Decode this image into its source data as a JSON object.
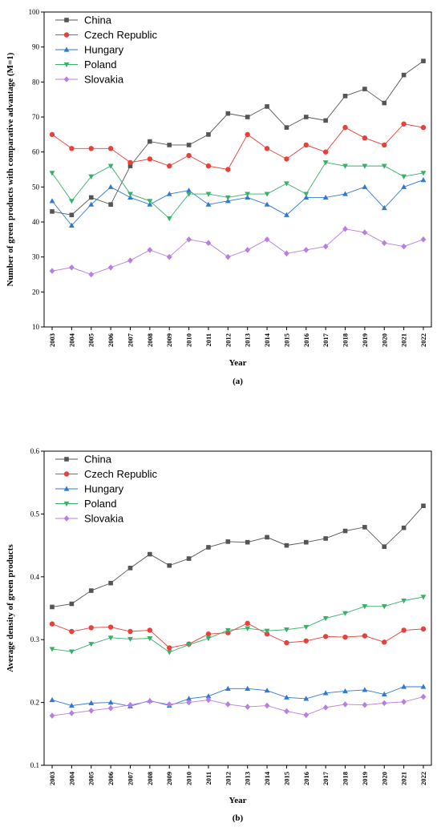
{
  "chart_data": [
    {
      "type": "line",
      "panel_label": "(a)",
      "xlabel": "Year",
      "ylabel": "Number of green products with comparative advantage (M=1)",
      "ylim": [
        10,
        100
      ],
      "yticks": [
        "10",
        "20",
        "30",
        "40",
        "50",
        "60",
        "70",
        "80",
        "90",
        "100"
      ],
      "x": [
        "2003",
        "2004",
        "2005",
        "2006",
        "2007",
        "2008",
        "2009",
        "2010",
        "2011",
        "2012",
        "2013",
        "2014",
        "2015",
        "2016",
        "2017",
        "2018",
        "2019",
        "2020",
        "2021",
        "2022"
      ],
      "legend_position": "top-left",
      "grid": false,
      "series": [
        {
          "name": "China",
          "color": "#555555",
          "marker": "square",
          "values": [
            43,
            42,
            47,
            45,
            56,
            63,
            62,
            62,
            65,
            71,
            70,
            73,
            67,
            70,
            69,
            76,
            78,
            74,
            82,
            86
          ]
        },
        {
          "name": "Czech Republic",
          "color": "#e8403a",
          "marker": "circle",
          "values": [
            65,
            61,
            61,
            61,
            57,
            58,
            56,
            59,
            56,
            55,
            65,
            61,
            58,
            62,
            60,
            67,
            64,
            62,
            68,
            67
          ]
        },
        {
          "name": "Hungary",
          "color": "#2f78d6",
          "marker": "triangle-up",
          "values": [
            46,
            39,
            45,
            50,
            47,
            45,
            48,
            49,
            45,
            46,
            47,
            45,
            42,
            47,
            47,
            48,
            50,
            44,
            50,
            52
          ]
        },
        {
          "name": "Poland",
          "color": "#38b06a",
          "marker": "triangle-down",
          "values": [
            54,
            46,
            53,
            56,
            48,
            46,
            41,
            48,
            48,
            47,
            48,
            48,
            51,
            48,
            57,
            56,
            56,
            56,
            53,
            54
          ]
        },
        {
          "name": "Slovakia",
          "color": "#b87fe0",
          "marker": "diamond",
          "values": [
            26,
            27,
            25,
            27,
            29,
            32,
            30,
            35,
            34,
            30,
            32,
            35,
            31,
            32,
            33,
            38,
            37,
            34,
            33,
            35
          ]
        }
      ]
    },
    {
      "type": "line",
      "panel_label": "(b)",
      "xlabel": "Year",
      "ylabel": "Average density of green products",
      "ylim": [
        0.1,
        0.6
      ],
      "yticks": [
        "0.1",
        "0.2",
        "0.3",
        "0.4",
        "0.5",
        "0.6"
      ],
      "x": [
        "2003",
        "2004",
        "2005",
        "2006",
        "2007",
        "2008",
        "2009",
        "2010",
        "2011",
        "2012",
        "2013",
        "2014",
        "2015",
        "2016",
        "2017",
        "2018",
        "2019",
        "2020",
        "2021",
        "2022"
      ],
      "legend_position": "top-left",
      "grid": false,
      "series": [
        {
          "name": "China",
          "color": "#555555",
          "marker": "square",
          "values": [
            0.352,
            0.357,
            0.378,
            0.39,
            0.414,
            0.436,
            0.418,
            0.429,
            0.447,
            0.456,
            0.455,
            0.463,
            0.45,
            0.455,
            0.461,
            0.473,
            0.479,
            0.448,
            0.478,
            0.513
          ]
        },
        {
          "name": "Czech Republic",
          "color": "#e8403a",
          "marker": "circle",
          "values": [
            0.325,
            0.313,
            0.319,
            0.32,
            0.313,
            0.315,
            0.287,
            0.293,
            0.309,
            0.311,
            0.326,
            0.309,
            0.295,
            0.298,
            0.305,
            0.304,
            0.306,
            0.296,
            0.315,
            0.317
          ]
        },
        {
          "name": "Hungary",
          "color": "#2f78d6",
          "marker": "triangle-up",
          "values": [
            0.204,
            0.195,
            0.199,
            0.2,
            0.194,
            0.203,
            0.195,
            0.206,
            0.21,
            0.222,
            0.222,
            0.219,
            0.208,
            0.206,
            0.215,
            0.218,
            0.22,
            0.213,
            0.225,
            0.225
          ]
        },
        {
          "name": "Poland",
          "color": "#38b06a",
          "marker": "triangle-down",
          "values": [
            0.285,
            0.281,
            0.293,
            0.303,
            0.301,
            0.302,
            0.28,
            0.292,
            0.302,
            0.315,
            0.318,
            0.314,
            0.316,
            0.32,
            0.334,
            0.342,
            0.353,
            0.353,
            0.362,
            0.368
          ]
        },
        {
          "name": "Slovakia",
          "color": "#b87fe0",
          "marker": "diamond",
          "values": [
            0.179,
            0.183,
            0.187,
            0.191,
            0.196,
            0.202,
            0.197,
            0.2,
            0.204,
            0.197,
            0.193,
            0.195,
            0.186,
            0.18,
            0.192,
            0.197,
            0.196,
            0.199,
            0.201,
            0.209
          ]
        }
      ]
    }
  ]
}
